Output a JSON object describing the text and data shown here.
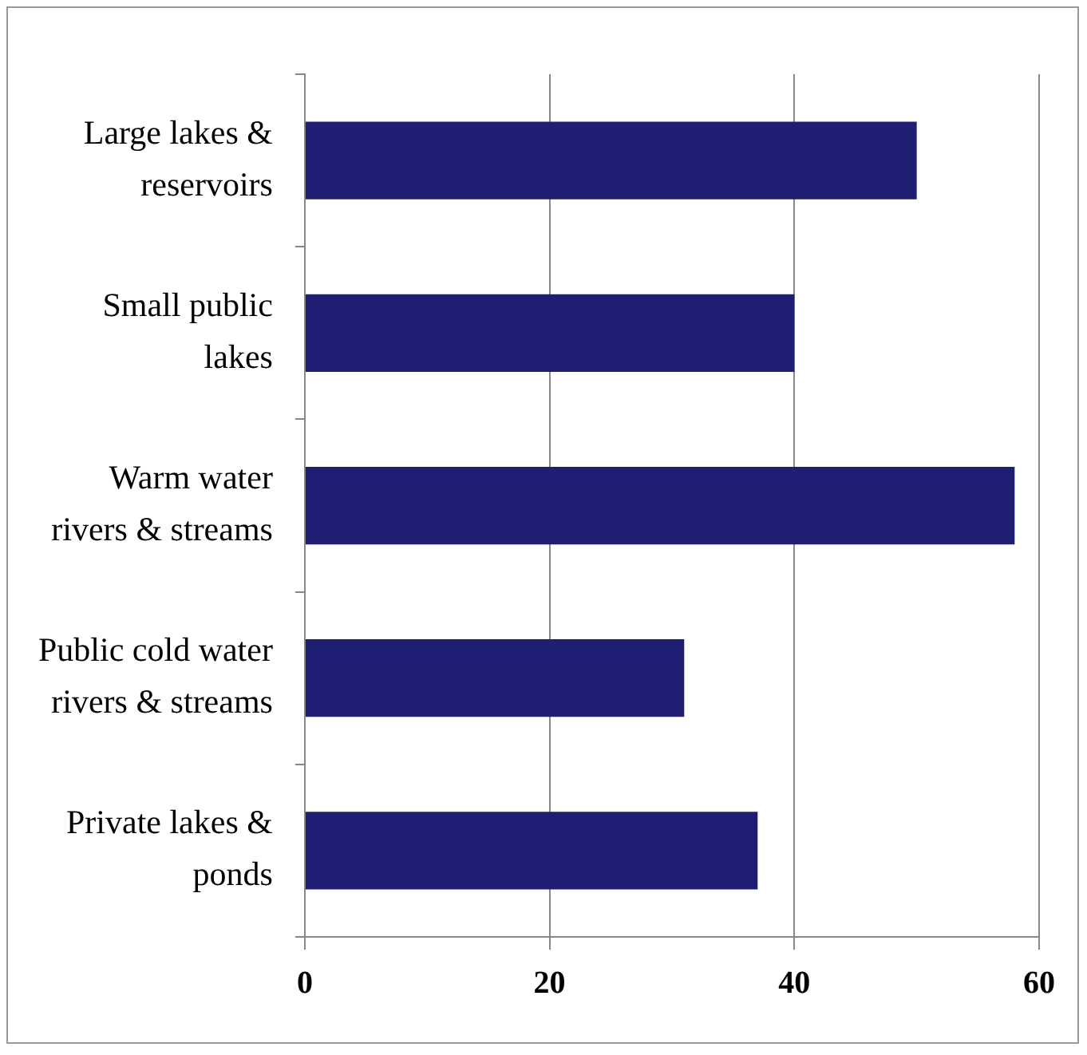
{
  "chart_data": {
    "type": "bar",
    "orientation": "horizontal",
    "categories": [
      "Large lakes & reservoirs",
      "Small public lakes",
      "Warm water rivers & streams",
      "Public cold water rivers & streams",
      "Private lakes & ponds"
    ],
    "values": [
      50,
      40,
      58,
      31,
      37
    ],
    "color": "#1e1e72",
    "xlim": [
      0,
      60
    ],
    "xticks": [
      0,
      20,
      40,
      60
    ],
    "grid": "x",
    "legend": false
  }
}
